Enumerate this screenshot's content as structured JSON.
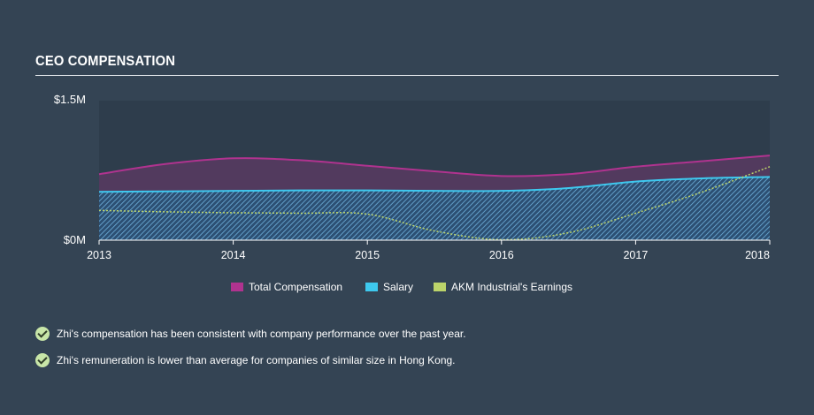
{
  "section_title": "CEO COMPENSATION",
  "notes": [
    "Zhi's compensation has been consistent with company performance over the past year.",
    "Zhi's remuneration is lower than average for companies of similar size in Hong Kong."
  ],
  "chart_data": {
    "type": "area",
    "y_tick_labels": [
      "$1.5M",
      "$0M"
    ],
    "x_tick_labels": [
      "2013",
      "2014",
      "2015",
      "2016",
      "2017",
      "2018"
    ],
    "ylim": [
      0,
      1500000
    ],
    "xlim": [
      2013.0,
      2018.0
    ],
    "legend_position": "bottom-center",
    "colors": {
      "total_compensation": "#b0338f",
      "salary": "#3ec9ef",
      "earnings": "#bcd46a"
    },
    "series": [
      {
        "name": "Total Compensation",
        "key": "total_compensation",
        "style": "area",
        "x": [
          2013.0,
          2013.5,
          2014.0,
          2014.5,
          2015.0,
          2015.5,
          2016.0,
          2016.5,
          2017.0,
          2017.5,
          2018.0
        ],
        "values": [
          710000,
          820000,
          880000,
          860000,
          800000,
          740000,
          690000,
          710000,
          790000,
          850000,
          910000
        ]
      },
      {
        "name": "Salary",
        "key": "salary",
        "style": "area",
        "x": [
          2013.0,
          2013.5,
          2014.0,
          2014.5,
          2015.0,
          2015.5,
          2016.0,
          2016.5,
          2017.0,
          2017.5,
          2018.0
        ],
        "values": [
          520000,
          525000,
          530000,
          535000,
          535000,
          530000,
          530000,
          560000,
          630000,
          665000,
          680000
        ]
      },
      {
        "name": "AKM Industrial's Earnings",
        "key": "earnings",
        "style": "dotted-line",
        "x": [
          2013.0,
          2013.5,
          2014.0,
          2014.5,
          2015.0,
          2015.5,
          2016.0,
          2016.5,
          2017.0,
          2017.5,
          2018.0
        ],
        "values": [
          320000,
          305000,
          295000,
          290000,
          280000,
          100000,
          5000,
          80000,
          290000,
          520000,
          790000
        ]
      }
    ]
  }
}
